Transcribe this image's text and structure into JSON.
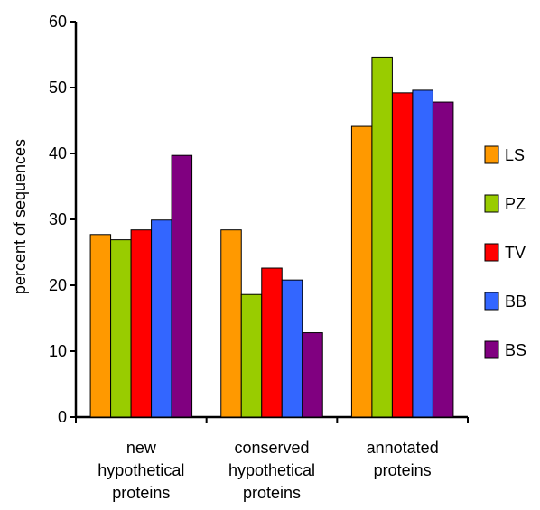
{
  "chart_data": {
    "type": "bar",
    "title": "",
    "xlabel": "",
    "ylabel": "percent of sequences",
    "ylim": [
      0,
      60
    ],
    "yticks": [
      0,
      10,
      20,
      30,
      40,
      50,
      60
    ],
    "categories": [
      [
        "new",
        "hypothetical",
        "proteins"
      ],
      [
        "conserved",
        "hypothetical",
        "proteins"
      ],
      [
        "annotated",
        "proteins"
      ]
    ],
    "series": [
      {
        "name": "LS",
        "color": "#FF9900",
        "values": [
          27.7,
          28.4,
          44.1
        ]
      },
      {
        "name": "PZ",
        "color": "#99CC00",
        "values": [
          26.9,
          18.6,
          54.6
        ]
      },
      {
        "name": "TV",
        "color": "#FF0000",
        "values": [
          28.4,
          22.6,
          49.2
        ]
      },
      {
        "name": "BB",
        "color": "#3366FF",
        "values": [
          29.9,
          20.8,
          49.6
        ]
      },
      {
        "name": "BS",
        "color": "#800080",
        "values": [
          39.7,
          12.8,
          47.8
        ]
      }
    ],
    "grid": false,
    "legend": "right"
  }
}
